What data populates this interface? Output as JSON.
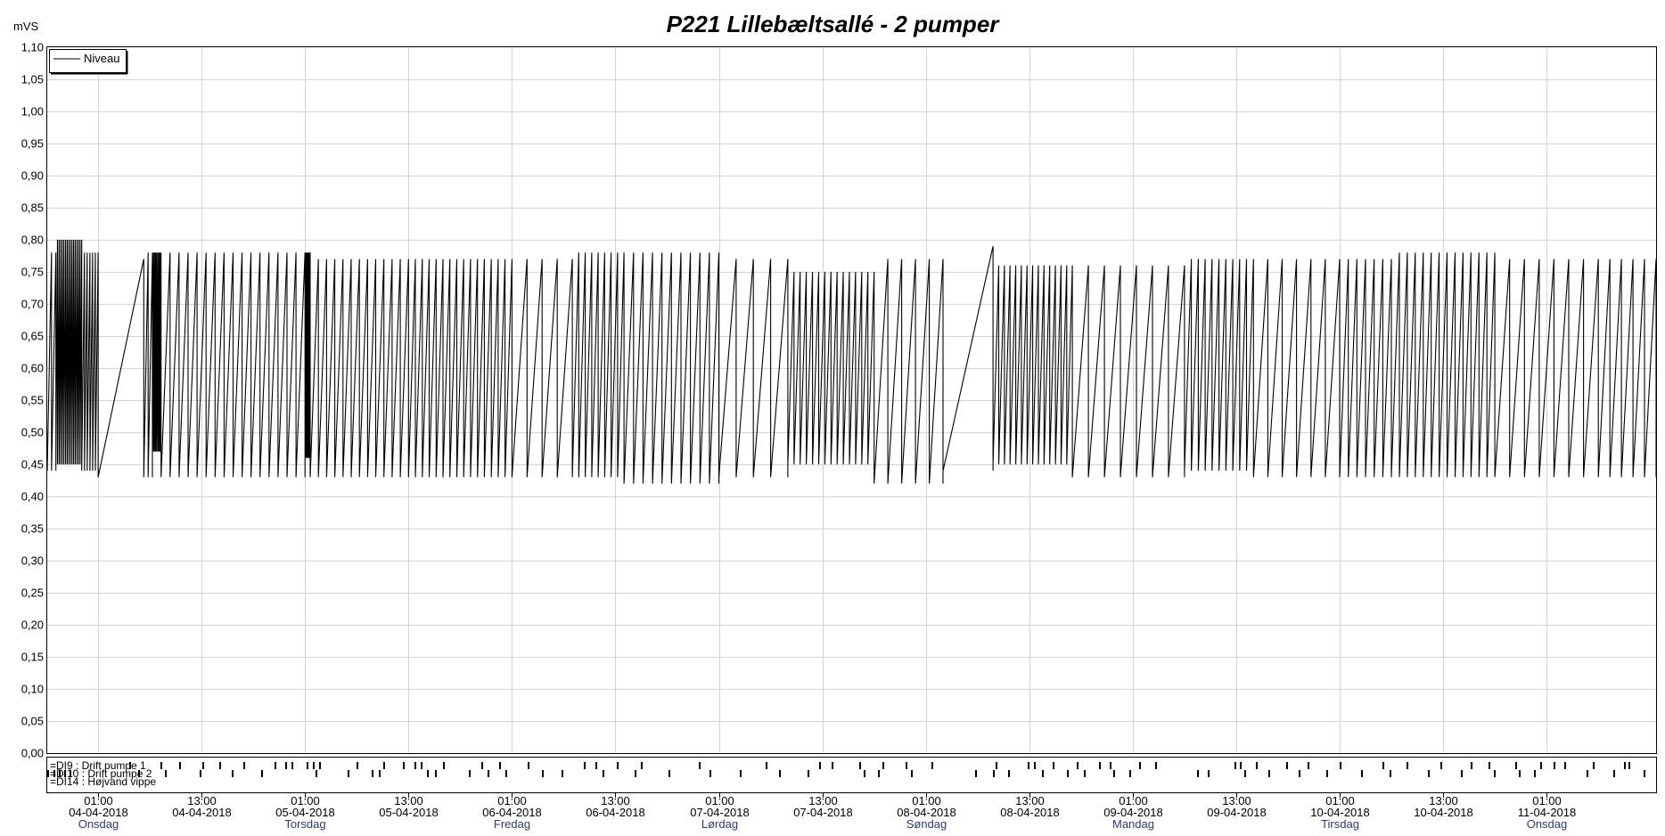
{
  "chart_data": {
    "type": "line",
    "title": "P221 Lillebæltsallé - 2 pumper",
    "ylabel": "mVS",
    "ylim": [
      0.0,
      1.1
    ],
    "yticks": [
      "0,00",
      "0,05",
      "0,10",
      "0,15",
      "0,20",
      "0,25",
      "0,30",
      "0,35",
      "0,40",
      "0,45",
      "0,50",
      "0,55",
      "0,60",
      "0,65",
      "0,70",
      "0,75",
      "0,80",
      "0,85",
      "0,90",
      "0,95",
      "1,00",
      "1,05",
      "1,10"
    ],
    "grid": true,
    "legend": {
      "placement": "top-left",
      "entries": [
        "Niveau"
      ]
    },
    "x_range_hours": [
      -5.9,
      180.7
    ],
    "x_ticks": [
      {
        "h": 0,
        "time": "01:00",
        "date": "04-04-2018",
        "day": "Onsdag"
      },
      {
        "h": 12,
        "time": "13:00",
        "date": "04-04-2018",
        "day": ""
      },
      {
        "h": 24,
        "time": "01:00",
        "date": "05-04-2018",
        "day": "Torsdag"
      },
      {
        "h": 36,
        "time": "13:00",
        "date": "05-04-2018",
        "day": ""
      },
      {
        "h": 48,
        "time": "01:00",
        "date": "06-04-2018",
        "day": "Fredag"
      },
      {
        "h": 60,
        "time": "13:00",
        "date": "06-04-2018",
        "day": ""
      },
      {
        "h": 72,
        "time": "01:00",
        "date": "07-04-2018",
        "day": "Lørdag"
      },
      {
        "h": 84,
        "time": "13:00",
        "date": "07-04-2018",
        "day": ""
      },
      {
        "h": 96,
        "time": "01:00",
        "date": "08-04-2018",
        "day": "Søndag"
      },
      {
        "h": 108,
        "time": "13:00",
        "date": "08-04-2018",
        "day": ""
      },
      {
        "h": 120,
        "time": "01:00",
        "date": "09-04-2018",
        "day": "Mandag"
      },
      {
        "h": 132,
        "time": "13:00",
        "date": "09-04-2018",
        "day": ""
      },
      {
        "h": 144,
        "time": "01:00",
        "date": "10-04-2018",
        "day": "Tirsdag"
      },
      {
        "h": 156,
        "time": "13:00",
        "date": "10-04-2018",
        "day": ""
      },
      {
        "h": 168,
        "time": "01:00",
        "date": "11-04-2018",
        "day": "Onsdag"
      }
    ],
    "series": [
      {
        "name": "Niveau",
        "cycles": [
          {
            "start": -5.9,
            "end": -4.9,
            "n": 2,
            "low": 0.44,
            "high": 0.78
          },
          {
            "start": -4.9,
            "end": -1.9,
            "n": 16,
            "low": 0.45,
            "high": 0.8
          },
          {
            "start": -1.9,
            "end": 0.0,
            "n": 6,
            "low": 0.44,
            "high": 0.78
          },
          {
            "start": 0.0,
            "end": 5.3,
            "n": 1,
            "low": 0.43,
            "high": 0.77
          },
          {
            "start": 5.3,
            "end": 6.3,
            "n": 2,
            "low": 0.43,
            "high": 0.78
          },
          {
            "start": 6.3,
            "end": 7.3,
            "n": 8,
            "low": 0.47,
            "high": 0.78
          },
          {
            "start": 7.3,
            "end": 24.0,
            "n": 16,
            "low": 0.43,
            "high": 0.78
          },
          {
            "start": 24.0,
            "end": 24.6,
            "n": 8,
            "low": 0.46,
            "high": 0.78
          },
          {
            "start": 24.6,
            "end": 36.0,
            "n": 12,
            "low": 0.43,
            "high": 0.77
          },
          {
            "start": 36.0,
            "end": 48.0,
            "n": 15,
            "low": 0.43,
            "high": 0.77
          },
          {
            "start": 48.0,
            "end": 55.0,
            "n": 4,
            "low": 0.43,
            "high": 0.77
          },
          {
            "start": 55.0,
            "end": 61.0,
            "n": 8,
            "low": 0.43,
            "high": 0.78
          },
          {
            "start": 61.0,
            "end": 72.0,
            "n": 10,
            "low": 0.42,
            "high": 0.78
          },
          {
            "start": 72.0,
            "end": 80.0,
            "n": 4,
            "low": 0.43,
            "high": 0.77
          },
          {
            "start": 80.0,
            "end": 90.0,
            "n": 14,
            "low": 0.45,
            "high": 0.75
          },
          {
            "start": 90.0,
            "end": 98.0,
            "n": 5,
            "low": 0.42,
            "high": 0.77
          },
          {
            "start": 98.0,
            "end": 103.8,
            "n": 1,
            "low": 0.44,
            "high": 0.79
          },
          {
            "start": 103.8,
            "end": 113.0,
            "n": 14,
            "low": 0.45,
            "high": 0.76
          },
          {
            "start": 113.0,
            "end": 126.0,
            "n": 7,
            "low": 0.43,
            "high": 0.76
          },
          {
            "start": 126.0,
            "end": 134.0,
            "n": 10,
            "low": 0.44,
            "high": 0.77
          },
          {
            "start": 134.0,
            "end": 144.0,
            "n": 6,
            "low": 0.43,
            "high": 0.77
          },
          {
            "start": 144.0,
            "end": 150.0,
            "n": 6,
            "low": 0.43,
            "high": 0.77
          },
          {
            "start": 150.0,
            "end": 162.0,
            "n": 13,
            "low": 0.43,
            "high": 0.78
          },
          {
            "start": 162.0,
            "end": 174.0,
            "n": 7,
            "low": 0.43,
            "high": 0.77
          },
          {
            "start": 174.0,
            "end": 180.7,
            "n": 5,
            "low": 0.43,
            "high": 0.77
          }
        ]
      }
    ],
    "digital_channels": [
      {
        "label": "=DI9 : Drift pumpe 1",
        "events_h": [
          3.6,
          7.2,
          9.4,
          12.1,
          14.1,
          16.8,
          20.5,
          21.7,
          22.4,
          24.2,
          24.9,
          25.6,
          30.0,
          33.1,
          35.3,
          36.7,
          37.4,
          40.0,
          44.4,
          46.5,
          49.8,
          56.3,
          57.7,
          60.2,
          63.0,
          69.7,
          77.4,
          83.6,
          85.1,
          88.3,
          91.0,
          93.7,
          96.7,
          104.1,
          107.8,
          108.5,
          110.7,
          113.5,
          116.1,
          117.3,
          120.7,
          122.6,
          131.8,
          132.4,
          134.3,
          137.8,
          140.3,
          144.0,
          149.0,
          151.8,
          155.7,
          159.2,
          161.3,
          164.4,
          167.3,
          168.8,
          170.1,
          173.4,
          177.0,
          177.5
        ]
      },
      {
        "label": "=DI10 : Drift pumpe 2",
        "events_h": [
          -5.9,
          -5.2,
          -4.6,
          -3.9,
          -3.3,
          4.6,
          7.7,
          11.8,
          15.5,
          18.9,
          25.2,
          28.9,
          31.7,
          32.6,
          38.1,
          39.1,
          43.0,
          45.2,
          47.2,
          51.5,
          53.8,
          58.5,
          62.2,
          66.2,
          70.9,
          74.4,
          79.0,
          82.3,
          88.8,
          90.4,
          94.3,
          101.7,
          103.8,
          105.5,
          109.5,
          112.4,
          114.3,
          117.7,
          119.6,
          127.5,
          128.7,
          132.9,
          135.7,
          139.2,
          142.5,
          146.5,
          149.8,
          154.2,
          158.1,
          161.9,
          164.8,
          166.5,
          172.6,
          175.7,
          179.3
        ]
      },
      {
        "label": "=DI14 : Højvand vippe",
        "events_h": []
      }
    ]
  }
}
